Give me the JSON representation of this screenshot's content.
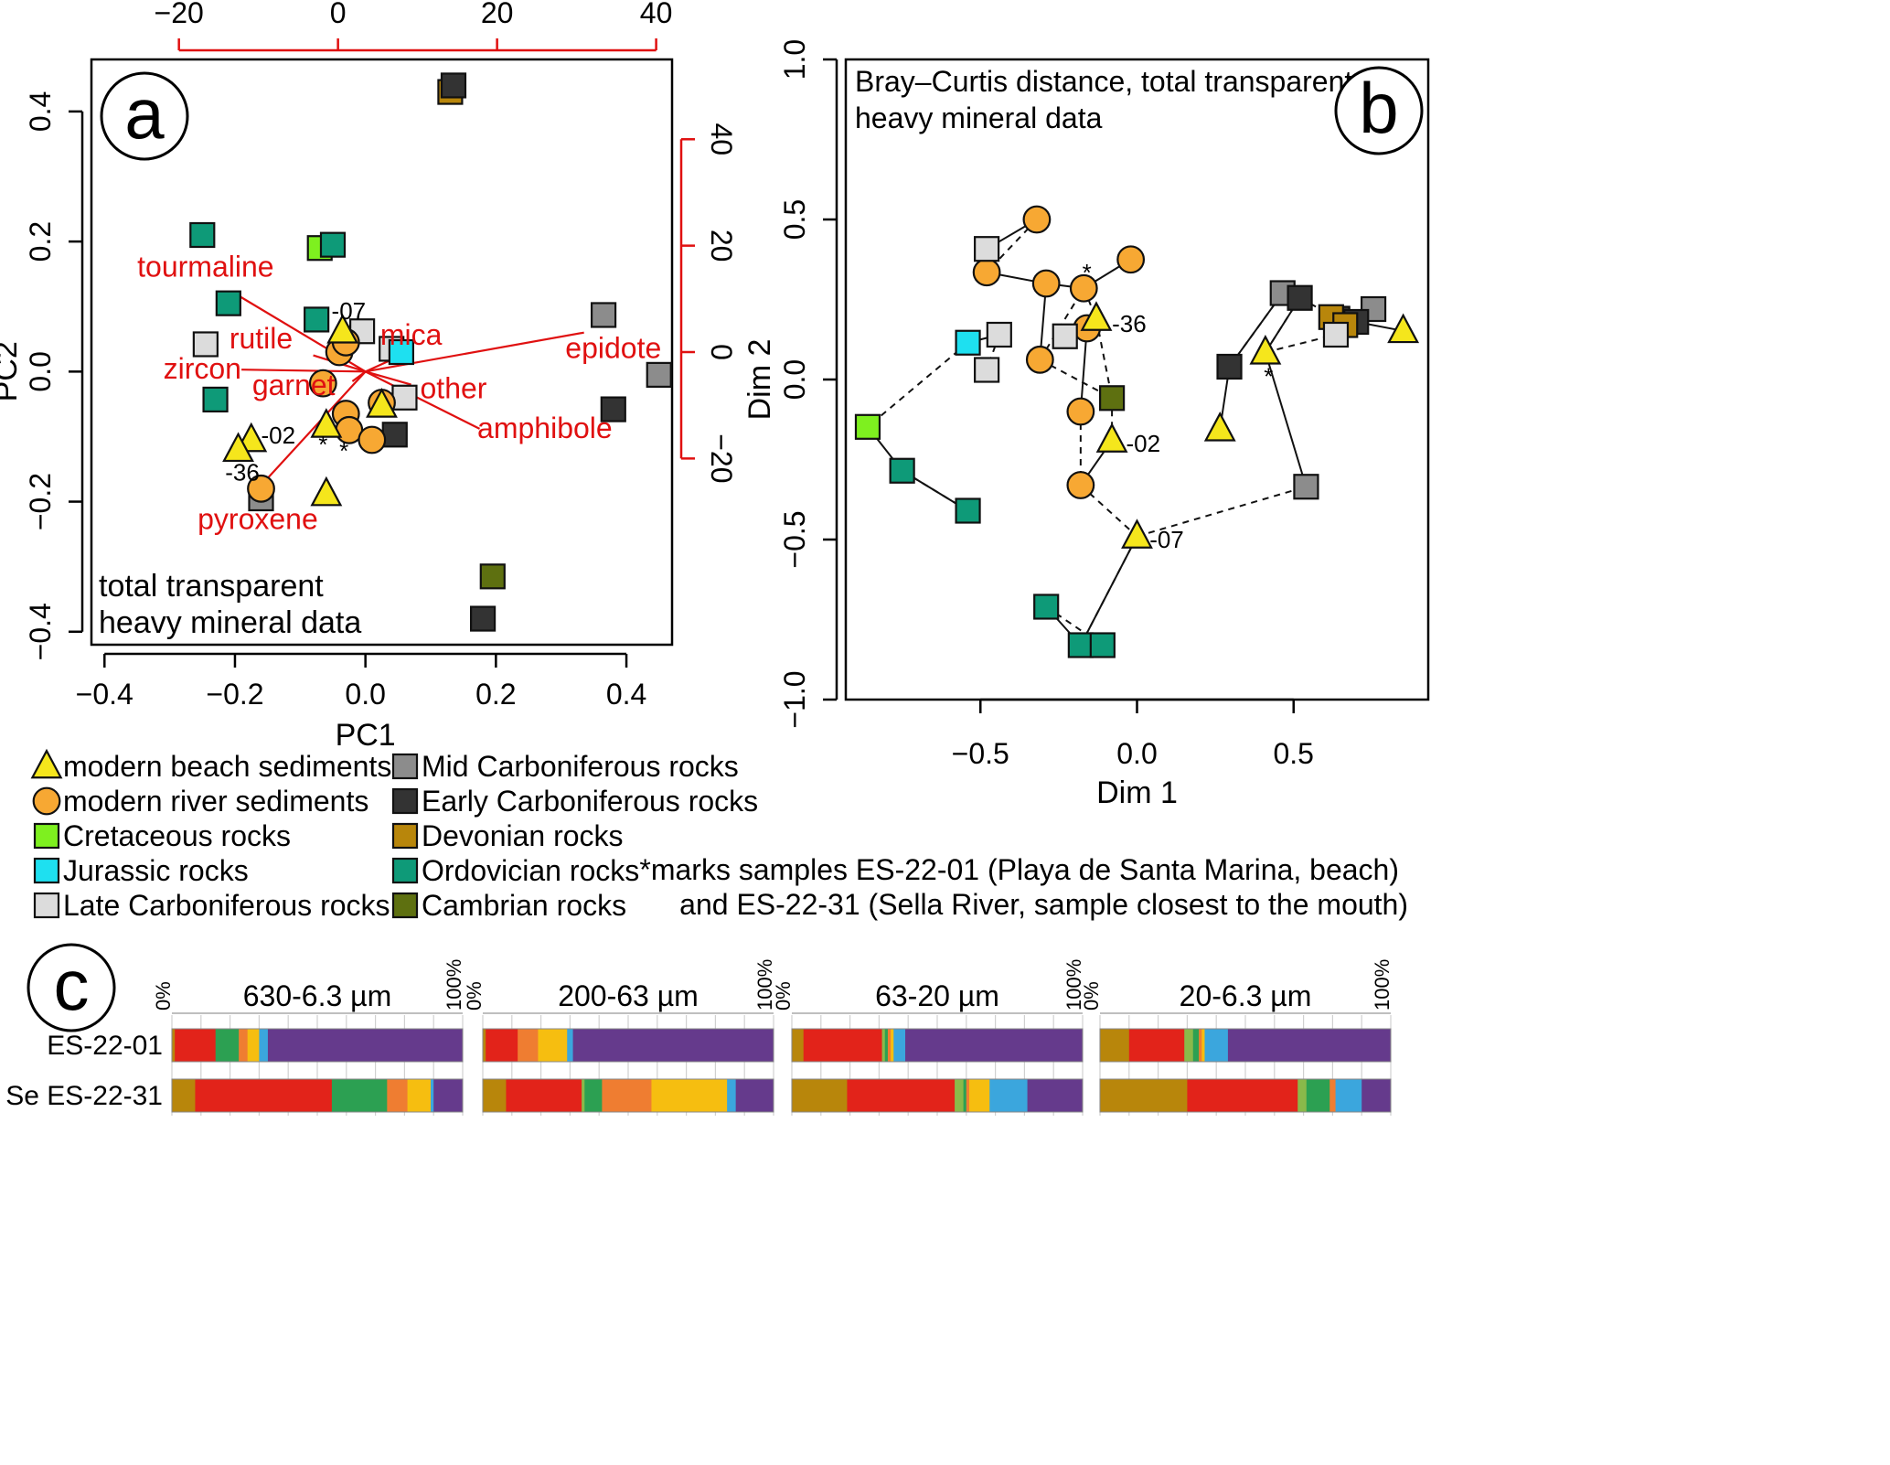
{
  "panel_a": {
    "letter": "a",
    "note": [
      "total transparent",
      "heavy mineral data"
    ]
  },
  "panel_b": {
    "letter": "b",
    "note": [
      "Bray–Curtis distance, total transparent",
      "heavy mineral data"
    ]
  },
  "panel_c": {
    "letter": "c"
  },
  "legend": [
    {
      "label": "modern beach sediments",
      "shape": "triangle",
      "color": "#f5e61c"
    },
    {
      "label": "modern river sediments",
      "shape": "circle",
      "color": "#f7a833"
    },
    {
      "label": "Cretaceous rocks",
      "shape": "square",
      "color": "#7ef01f"
    },
    {
      "label": "Jurassic rocks",
      "shape": "square",
      "color": "#1ee0f0"
    },
    {
      "label": "Late Carboniferous rocks",
      "shape": "square",
      "color": "#dcdcdc"
    },
    {
      "label": "Mid Carboniferous rocks",
      "shape": "square",
      "color": "#8c8c8c"
    },
    {
      "label": "Early Carboniferous rocks",
      "shape": "square",
      "color": "#333333"
    },
    {
      "label": "Devonian rocks",
      "shape": "square",
      "color": "#b8860b"
    },
    {
      "label": "Ordovician rocks",
      "shape": "square",
      "color": "#0e9a78"
    },
    {
      "label": "Cambrian rocks",
      "shape": "square",
      "color": "#5e7010"
    }
  ],
  "footnote": [
    "*marks samples ES-22-01 (Playa de Santa Marina, beach)",
    "and ES-22-31 (Sella River, sample closest to the mouth)"
  ],
  "chart_data": [
    {
      "type": "scatter",
      "panel": "a",
      "xlabel": "PC1",
      "ylabel": "PC2",
      "xlim": [
        -0.42,
        0.47
      ],
      "ylim": [
        -0.42,
        0.48
      ],
      "xticks": [
        "−0.4",
        "−0.2",
        "0.0",
        "0.2",
        "0.4"
      ],
      "yticks": [
        "−0.4",
        "−0.2",
        "0.0",
        "0.2",
        "0.4"
      ],
      "top_axis": {
        "range": [
          -31,
          42
        ],
        "ticks": [
          "−20",
          "0",
          "20",
          "40"
        ]
      },
      "right_axis": {
        "range": [
          -55,
          55
        ],
        "ticks": [
          "−20",
          "0",
          "20",
          "40"
        ]
      },
      "points": [
        {
          "x": 0.13,
          "y": 0.43,
          "g": "Devonian rocks"
        },
        {
          "x": 0.135,
          "y": 0.44,
          "g": "Early Carboniferous rocks"
        },
        {
          "x": -0.25,
          "y": 0.21,
          "g": "Ordovician rocks"
        },
        {
          "x": -0.07,
          "y": 0.19,
          "g": "Cretaceous rocks"
        },
        {
          "x": -0.05,
          "y": 0.195,
          "g": "Ordovician rocks"
        },
        {
          "x": -0.21,
          "y": 0.105,
          "g": "Ordovician rocks"
        },
        {
          "x": -0.075,
          "y": 0.08,
          "g": "Ordovician rocks"
        },
        {
          "x": -0.245,
          "y": 0.042,
          "g": "Late Carboniferous rocks"
        },
        {
          "x": -0.005,
          "y": 0.062,
          "g": "Late Carboniferous rocks"
        },
        {
          "x": 0.04,
          "y": 0.035,
          "g": "Late Carboniferous rocks"
        },
        {
          "x": 0.055,
          "y": 0.03,
          "g": "Jurassic rocks"
        },
        {
          "x": 0.06,
          "y": -0.04,
          "g": "Late Carboniferous rocks"
        },
        {
          "x": 0.365,
          "y": 0.087,
          "g": "Mid Carboniferous rocks"
        },
        {
          "x": 0.45,
          "y": -0.005,
          "g": "Mid Carboniferous rocks"
        },
        {
          "x": 0.38,
          "y": -0.058,
          "g": "Early Carboniferous rocks"
        },
        {
          "x": -0.23,
          "y": -0.043,
          "g": "Ordovician rocks"
        },
        {
          "x": 0.045,
          "y": -0.097,
          "g": "Early Carboniferous rocks"
        },
        {
          "x": -0.16,
          "y": -0.195,
          "g": "Mid Carboniferous rocks"
        },
        {
          "x": 0.195,
          "y": -0.315,
          "g": "Cambrian rocks"
        },
        {
          "x": 0.18,
          "y": -0.38,
          "g": "Early Carboniferous rocks"
        },
        {
          "x": -0.04,
          "y": 0.03,
          "g": "modern river sediments"
        },
        {
          "x": -0.03,
          "y": 0.045,
          "g": "modern river sediments"
        },
        {
          "x": -0.065,
          "y": -0.018,
          "g": "modern river sediments"
        },
        {
          "x": -0.03,
          "y": -0.065,
          "g": "modern river sediments"
        },
        {
          "x": -0.025,
          "y": -0.09,
          "g": "modern river sediments"
        },
        {
          "x": 0.01,
          "y": -0.105,
          "g": "modern river sediments"
        },
        {
          "x": 0.025,
          "y": -0.048,
          "g": "modern river sediments"
        },
        {
          "x": -0.16,
          "y": -0.18,
          "g": "modern river sediments"
        },
        {
          "x": -0.035,
          "y": 0.062,
          "g": "modern beach sediments"
        },
        {
          "x": -0.06,
          "y": -0.083,
          "g": "modern beach sediments"
        },
        {
          "x": 0.025,
          "y": -0.052,
          "g": "modern beach sediments"
        },
        {
          "x": -0.175,
          "y": -0.105,
          "g": "modern beach sediments"
        },
        {
          "x": -0.195,
          "y": -0.12,
          "g": "modern beach sediments"
        },
        {
          "x": -0.06,
          "y": -0.188,
          "g": "modern beach sediments"
        }
      ],
      "labels": [
        {
          "text": "-07",
          "x": -0.052,
          "y": 0.093
        },
        {
          "text": "-02",
          "x": -0.16,
          "y": -0.098
        },
        {
          "text": "-36",
          "x": -0.215,
          "y": -0.155
        },
        {
          "text": "*",
          "x": -0.072,
          "y": -0.112
        },
        {
          "text": "*",
          "x": -0.04,
          "y": -0.122
        }
      ],
      "loadings": [
        {
          "name": "tourmaline",
          "x": -0.2,
          "y": 0.12,
          "lx": -0.245,
          "ly": 0.16
        },
        {
          "name": "rutile",
          "x": -0.08,
          "y": 0.025,
          "lx": -0.16,
          "ly": 0.05
        },
        {
          "name": "zircon",
          "x": -0.19,
          "y": 0.003,
          "lx": -0.25,
          "ly": 0.003
        },
        {
          "name": "garnet",
          "x": -0.02,
          "y": -0.015,
          "lx": -0.11,
          "ly": -0.022
        },
        {
          "name": "mica",
          "x": 0.055,
          "y": 0.025,
          "lx": 0.07,
          "ly": 0.055
        },
        {
          "name": "epidote",
          "x": 0.335,
          "y": 0.06,
          "lx": 0.38,
          "ly": 0.035
        },
        {
          "name": "other",
          "x": 0.07,
          "y": -0.02,
          "lx": 0.135,
          "ly": -0.027
        },
        {
          "name": "amphibole",
          "x": 0.175,
          "y": -0.088,
          "lx": 0.275,
          "ly": -0.088
        },
        {
          "name": "pyroxene",
          "x": -0.16,
          "y": -0.175,
          "lx": -0.165,
          "ly": -0.228
        }
      ]
    },
    {
      "type": "scatter",
      "panel": "b",
      "xlabel": "Dim 1",
      "ylabel": "Dim 2",
      "xlim": [
        -0.93,
        0.93
      ],
      "ylim": [
        -1.0,
        1.0
      ],
      "xticks": [
        "−0.5",
        "0.0",
        "0.5"
      ],
      "yticks": [
        "−1.0",
        "−0.5",
        "0.0",
        "0.5",
        "1.0"
      ],
      "points": [
        {
          "x": -0.32,
          "y": 0.5,
          "g": "modern river sediments"
        },
        {
          "x": -0.48,
          "y": 0.335,
          "g": "modern river sediments"
        },
        {
          "x": -0.29,
          "y": 0.3,
          "g": "modern river sediments"
        },
        {
          "x": -0.02,
          "y": 0.375,
          "g": "modern river sediments"
        },
        {
          "x": -0.17,
          "y": 0.285,
          "g": "modern river sediments"
        },
        {
          "x": -0.16,
          "y": 0.16,
          "g": "modern river sediments"
        },
        {
          "x": -0.31,
          "y": 0.062,
          "g": "modern river sediments"
        },
        {
          "x": -0.18,
          "y": -0.1,
          "g": "modern river sediments"
        },
        {
          "x": -0.18,
          "y": -0.33,
          "g": "modern river sediments"
        },
        {
          "x": -0.13,
          "y": 0.19,
          "g": "modern beach sediments"
        },
        {
          "x": -0.08,
          "y": -0.19,
          "g": "modern beach sediments"
        },
        {
          "x": 0.0,
          "y": -0.49,
          "g": "modern beach sediments"
        },
        {
          "x": 0.85,
          "y": 0.152,
          "g": "modern beach sediments"
        },
        {
          "x": 0.41,
          "y": 0.085,
          "g": "modern beach sediments"
        },
        {
          "x": 0.265,
          "y": -0.155,
          "g": "modern beach sediments"
        },
        {
          "x": -0.48,
          "y": 0.408,
          "g": "Late Carboniferous rocks"
        },
        {
          "x": -0.44,
          "y": 0.14,
          "g": "Late Carboniferous rocks"
        },
        {
          "x": -0.48,
          "y": 0.03,
          "g": "Late Carboniferous rocks"
        },
        {
          "x": -0.23,
          "y": 0.135,
          "g": "Late Carboniferous rocks"
        },
        {
          "x": -0.54,
          "y": 0.115,
          "g": "Jurassic rocks"
        },
        {
          "x": -0.08,
          "y": -0.058,
          "g": "Cambrian rocks"
        },
        {
          "x": -0.86,
          "y": -0.148,
          "g": "Cretaceous rocks"
        },
        {
          "x": -0.75,
          "y": -0.285,
          "g": "Ordovician rocks"
        },
        {
          "x": -0.54,
          "y": -0.41,
          "g": "Ordovician rocks"
        },
        {
          "x": -0.29,
          "y": -0.71,
          "g": "Ordovician rocks"
        },
        {
          "x": -0.18,
          "y": -0.83,
          "g": "Ordovician rocks"
        },
        {
          "x": -0.11,
          "y": -0.83,
          "g": "Ordovician rocks"
        },
        {
          "x": 0.465,
          "y": 0.27,
          "g": "Mid Carboniferous rocks"
        },
        {
          "x": 0.755,
          "y": 0.22,
          "g": "Mid Carboniferous rocks"
        },
        {
          "x": 0.54,
          "y": -0.335,
          "g": "Mid Carboniferous rocks"
        },
        {
          "x": 0.52,
          "y": 0.255,
          "g": "Early Carboniferous rocks"
        },
        {
          "x": 0.295,
          "y": 0.04,
          "g": "Early Carboniferous rocks"
        },
        {
          "x": 0.64,
          "y": 0.19,
          "g": "Early Carboniferous rocks"
        },
        {
          "x": 0.7,
          "y": 0.18,
          "g": "Early Carboniferous rocks"
        },
        {
          "x": 0.62,
          "y": 0.195,
          "g": "Devonian rocks"
        },
        {
          "x": 0.665,
          "y": 0.17,
          "g": "Devonian rocks"
        },
        {
          "x": 0.635,
          "y": 0.14,
          "g": "Late Carboniferous rocks"
        }
      ],
      "solid_links": [
        [
          -0.32,
          0.5,
          -0.48,
          0.408
        ],
        [
          -0.48,
          0.335,
          -0.29,
          0.3
        ],
        [
          -0.29,
          0.3,
          -0.31,
          0.062
        ],
        [
          -0.29,
          0.3,
          -0.17,
          0.285
        ],
        [
          -0.17,
          0.285,
          -0.02,
          0.375
        ],
        [
          -0.16,
          0.16,
          -0.23,
          0.135
        ],
        [
          -0.16,
          0.16,
          -0.18,
          -0.1
        ],
        [
          -0.18,
          -0.33,
          -0.08,
          -0.19
        ],
        [
          -0.54,
          0.115,
          -0.44,
          0.14
        ],
        [
          -0.86,
          -0.148,
          -0.75,
          -0.285
        ],
        [
          -0.75,
          -0.285,
          -0.54,
          -0.41
        ],
        [
          -0.29,
          -0.71,
          -0.18,
          -0.83
        ],
        [
          -0.18,
          -0.83,
          0.0,
          -0.49
        ],
        [
          0.465,
          0.27,
          0.295,
          0.04
        ],
        [
          0.52,
          0.255,
          0.465,
          0.27
        ],
        [
          0.52,
          0.255,
          0.41,
          0.085
        ],
        [
          0.41,
          0.085,
          0.54,
          -0.335
        ],
        [
          0.295,
          0.04,
          0.265,
          -0.155
        ],
        [
          0.7,
          0.18,
          0.85,
          0.152
        ],
        [
          0.64,
          0.19,
          0.755,
          0.22
        ],
        [
          0.62,
          0.195,
          0.665,
          0.17
        ]
      ],
      "dashed_links": [
        [
          -0.32,
          0.5,
          -0.48,
          0.335
        ],
        [
          -0.48,
          0.408,
          -0.48,
          0.335
        ],
        [
          -0.17,
          0.285,
          -0.13,
          0.19
        ],
        [
          -0.13,
          0.19,
          -0.08,
          -0.058
        ],
        [
          -0.13,
          0.19,
          -0.16,
          0.16
        ],
        [
          -0.31,
          0.062,
          -0.17,
          0.285
        ],
        [
          -0.31,
          0.062,
          -0.08,
          -0.058
        ],
        [
          -0.44,
          0.14,
          -0.48,
          0.03
        ],
        [
          -0.54,
          0.115,
          -0.86,
          -0.148
        ],
        [
          -0.75,
          -0.285,
          -0.54,
          -0.41
        ],
        [
          -0.18,
          -0.1,
          -0.18,
          -0.33
        ],
        [
          -0.08,
          -0.058,
          -0.08,
          -0.19
        ],
        [
          -0.18,
          -0.33,
          0.0,
          -0.49
        ],
        [
          0.0,
          -0.49,
          0.54,
          -0.335
        ],
        [
          0.0,
          -0.49,
          -0.18,
          -0.83
        ],
        [
          -0.29,
          -0.71,
          -0.11,
          -0.83
        ],
        [
          0.295,
          0.04,
          0.465,
          0.27
        ],
        [
          0.41,
          0.085,
          0.635,
          0.14
        ],
        [
          0.41,
          0.085,
          0.52,
          0.255
        ],
        [
          0.52,
          0.255,
          0.64,
          0.19
        ]
      ],
      "labels": [
        {
          "text": "-36",
          "x": -0.08,
          "y": 0.175
        },
        {
          "text": "-02",
          "x": -0.035,
          "y": -0.2
        },
        {
          "text": "-07",
          "x": 0.04,
          "y": -0.5
        },
        {
          "text": "*",
          "x": -0.175,
          "y": 0.335
        },
        {
          "text": "*",
          "x": 0.405,
          "y": 0.01
        }
      ]
    },
    {
      "type": "bar",
      "panel": "c",
      "stacked": true,
      "rows": [
        "ES-22-01",
        "Se ES-22-31"
      ],
      "axis_min_label": "0%",
      "axis_max_label": "100%",
      "component_colors": [
        "#b8860b",
        "#e2231a",
        "#8ab94a",
        "#2ca052",
        "#ef7d31",
        "#f6be10",
        "#3ba6dd",
        "#653a8c"
      ],
      "panels": [
        {
          "title": "630-6.3 µm",
          "rows": [
            [
              1.0,
              14.0,
              0,
              8.0,
              3.0,
              4.0,
              3.0,
              67.0
            ],
            [
              8.0,
              47.0,
              0,
              19.0,
              7.0,
              8.0,
              1.0,
              10.0
            ]
          ]
        },
        {
          "title": "200-63 µm",
          "rows": [
            [
              1.0,
              11.0,
              0,
              0,
              7.0,
              10.0,
              2.0,
              69.0
            ],
            [
              8.0,
              26.0,
              1.0,
              6.0,
              17.0,
              26.0,
              3.0,
              13.0
            ]
          ]
        },
        {
          "title": "63-20 µm",
          "rows": [
            [
              4.0,
              27.0,
              1.0,
              1.0,
              1.0,
              1.0,
              4.0,
              61.0
            ],
            [
              19.0,
              37.0,
              3.0,
              1.0,
              1.0,
              7.0,
              13.0,
              19.0
            ]
          ]
        },
        {
          "title": "20-6.3 µm",
          "rows": [
            [
              10.0,
              19.0,
              3.0,
              2.0,
              1.0,
              1.0,
              8.0,
              56.0
            ],
            [
              30.0,
              38.0,
              3.0,
              8.0,
              2.0,
              0,
              9.0,
              10.0
            ]
          ]
        }
      ]
    }
  ]
}
